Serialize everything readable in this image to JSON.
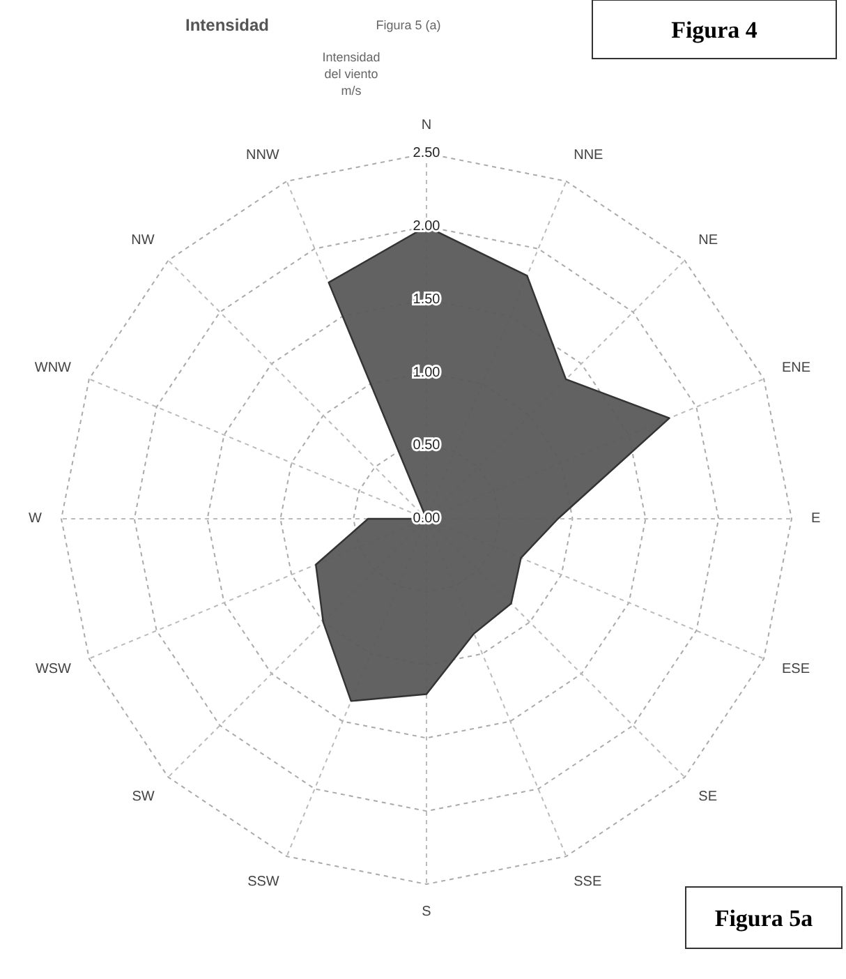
{
  "chart_data": {
    "type": "radar",
    "title": "Intensidad",
    "subtitle": "Figura 5 (a)",
    "ylabel": "Intensidad del viento m/s",
    "categories": [
      "N",
      "NNE",
      "NE",
      "ENE",
      "E",
      "ESE",
      "SE",
      "SSE",
      "S",
      "SSW",
      "SW",
      "WSW",
      "W",
      "WNW",
      "NW",
      "NNW"
    ],
    "series": [
      {
        "color": "#5a5a5a",
        "values": [
          2.0,
          1.8,
          1.35,
          1.8,
          0.9,
          0.7,
          0.82,
          0.85,
          1.2,
          1.35,
          1.0,
          0.82,
          0.4,
          0,
          0,
          1.75
        ]
      }
    ],
    "ylim": [
      0,
      2.5
    ],
    "yticks": [
      {
        "value": 0,
        "label": "0.00"
      },
      {
        "value": 0.5,
        "label": "0.50"
      },
      {
        "value": 1,
        "label": "1.00"
      },
      {
        "value": 1.5,
        "label": "1.50"
      },
      {
        "value": 2,
        "label": "2.00"
      },
      {
        "value": 2.5,
        "label": "2.50"
      }
    ],
    "grid": true,
    "marker": "none",
    "line_style": "solid",
    "annotations": [
      "Figura 4",
      "Figura 5a"
    ]
  }
}
